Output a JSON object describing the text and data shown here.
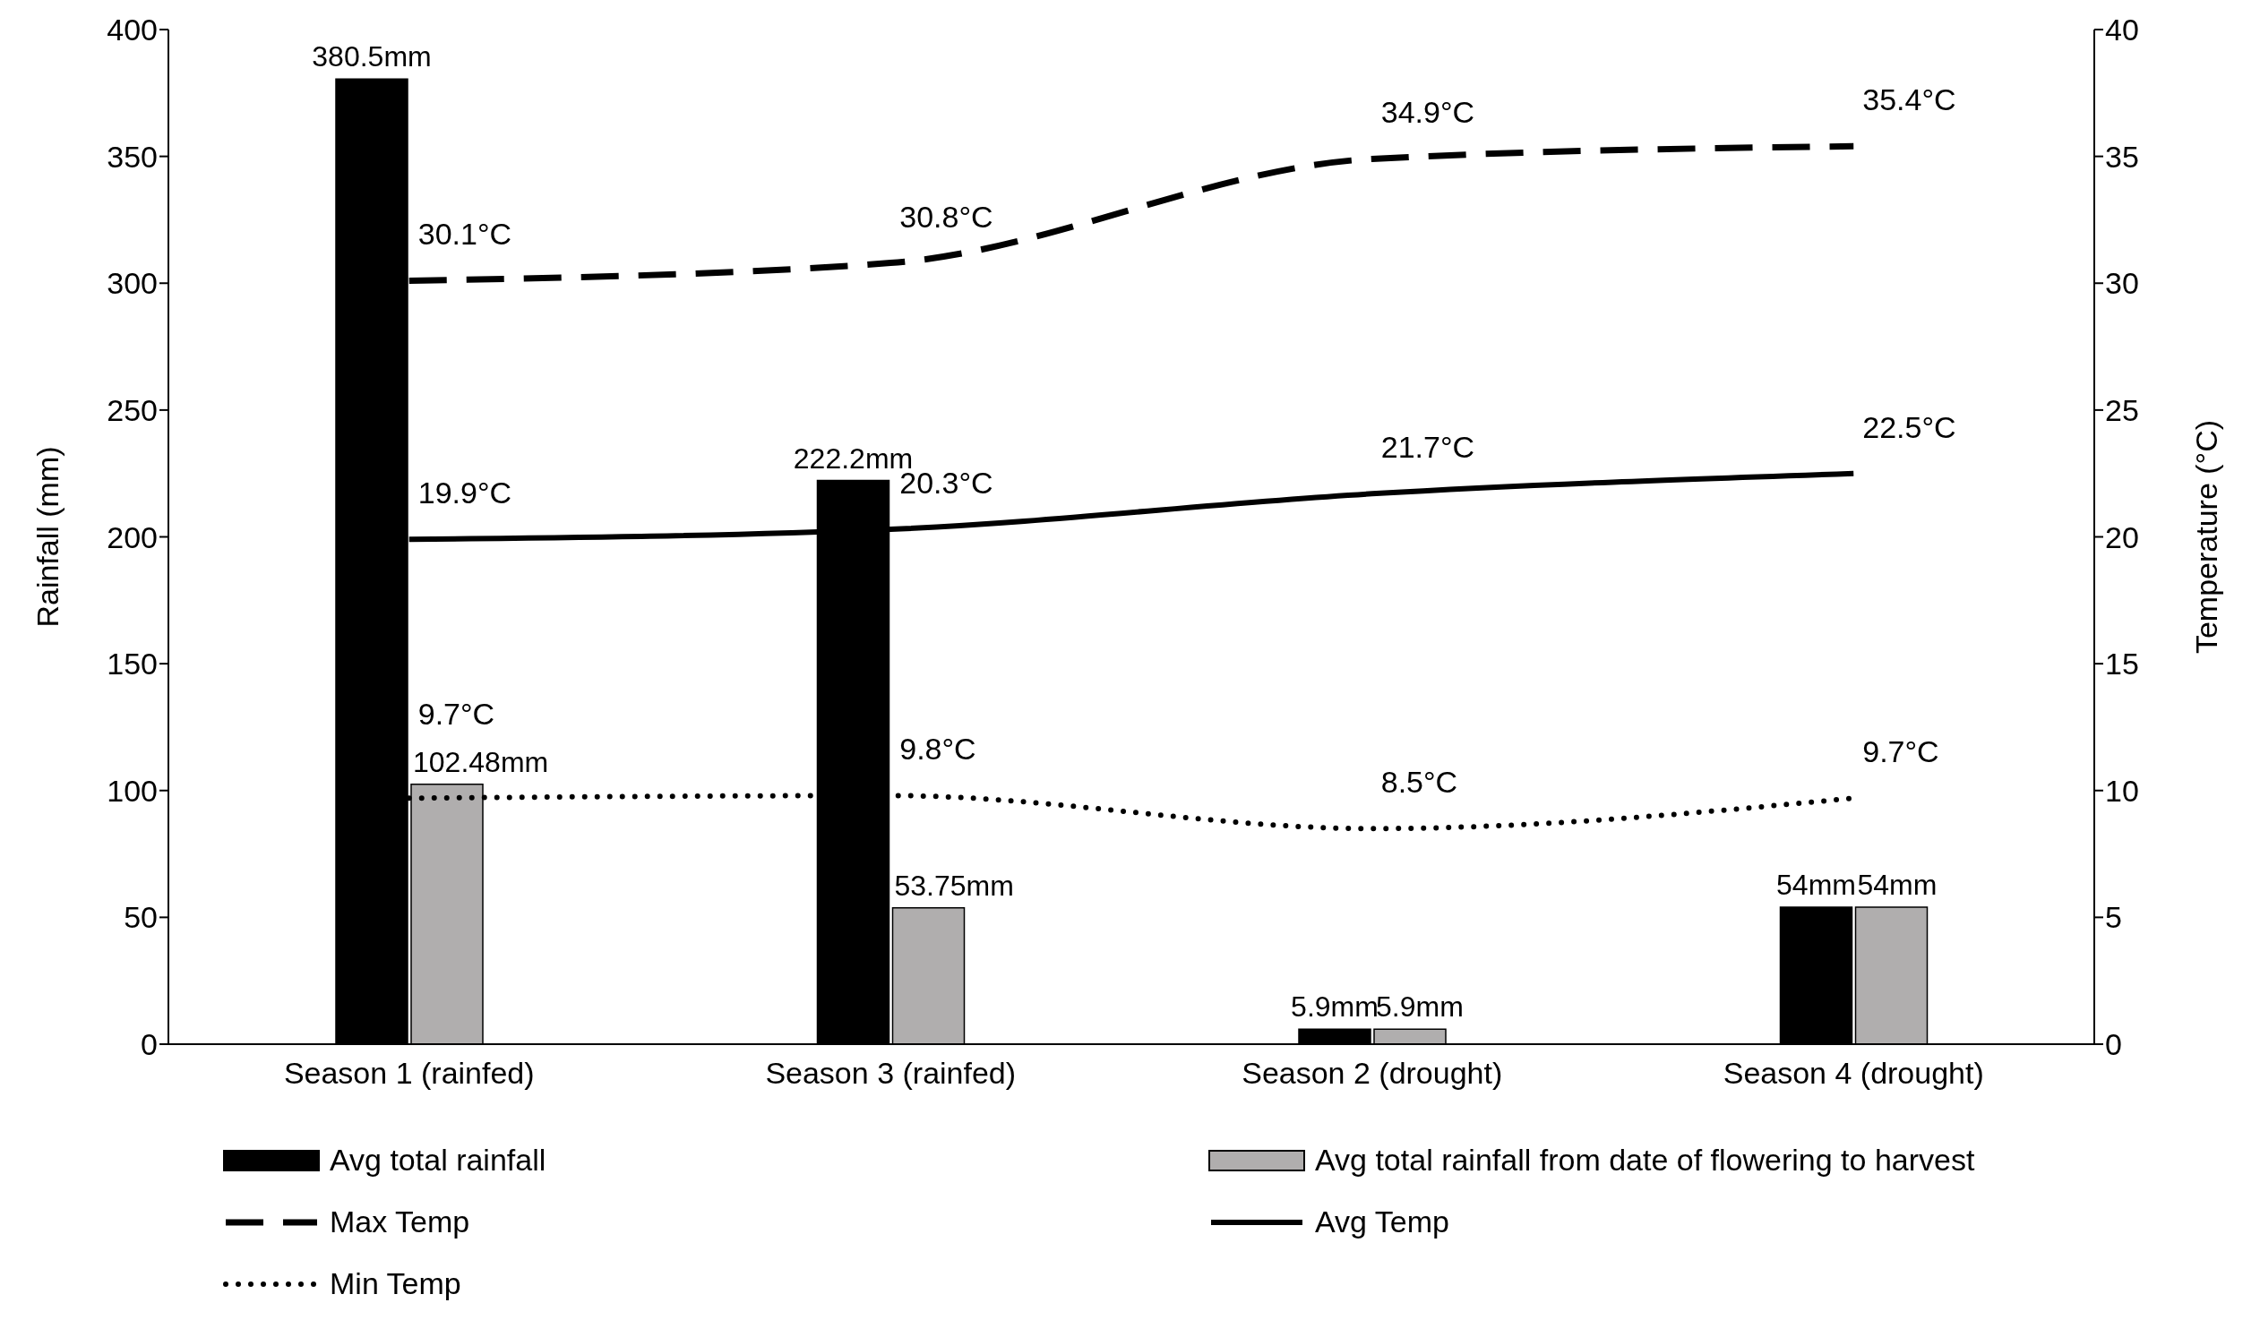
{
  "chart_data": {
    "type": "bar",
    "ylabel": "Rainfall (mm)",
    "y2label": "Temperature (°C)",
    "categories": [
      "Season 1 (rainfed)",
      "Season 3 (rainfed)",
      "Season 2 (drought)",
      "Season 4 (drought)"
    ],
    "ylim": [
      0,
      400
    ],
    "yticks": [
      0,
      50,
      100,
      150,
      200,
      250,
      300,
      350,
      400
    ],
    "y2lim": [
      0,
      40
    ],
    "y2ticks": [
      0,
      5,
      10,
      15,
      20,
      25,
      30,
      35,
      40
    ],
    "grid": false,
    "legend": "bottom",
    "series": [
      {
        "name": "Avg total rainfall",
        "color": "#000000",
        "values": [
          380.5,
          222.2,
          5.9,
          54
        ],
        "value_labels": [
          "380.5mm",
          "222.2mm",
          "5.9mm",
          "54mm"
        ]
      },
      {
        "name": "Avg total rainfall from date of flowering to harvest",
        "color": "#b0aeae",
        "values": [
          102.48,
          53.75,
          5.9,
          54
        ],
        "value_labels": [
          "102.48mm",
          "53.75mm",
          "5.9mm",
          "54mm"
        ]
      },
      {
        "name": "Max Temp",
        "type": "line",
        "axis": "y2",
        "line_style": "dashed",
        "color": "#000000",
        "values": [
          30.1,
          30.8,
          34.9,
          35.4
        ],
        "value_labels": [
          "30.1°C",
          "30.8°C",
          "34.9°C",
          "35.4°C"
        ]
      },
      {
        "name": "Avg Temp",
        "type": "line",
        "axis": "y2",
        "line_style": "solid",
        "color": "#000000",
        "values": [
          19.9,
          20.3,
          21.7,
          22.5
        ],
        "value_labels": [
          "19.9°C",
          "20.3°C",
          "21.7°C",
          "22.5°C"
        ]
      },
      {
        "name": "Min Temp",
        "type": "line",
        "axis": "y2",
        "line_style": "dotted",
        "color": "#000000",
        "values": [
          9.7,
          9.8,
          8.5,
          9.7
        ],
        "value_labels": [
          "9.7°C",
          "9.8°C",
          "8.5°C",
          "9.7°C"
        ]
      }
    ]
  }
}
